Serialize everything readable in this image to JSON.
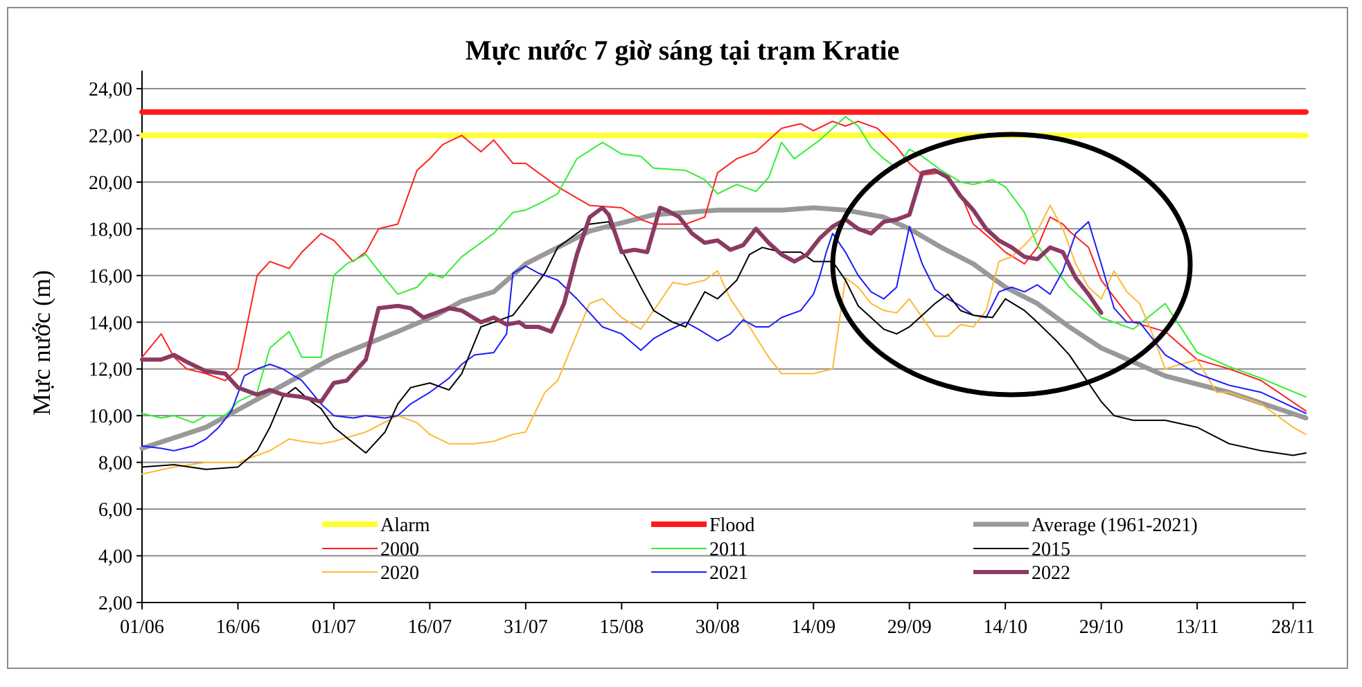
{
  "chart_data": {
    "type": "line",
    "title": "Mực nước 7 giờ sáng tại trạm Kratie",
    "xlabel": "",
    "ylabel": "Mực nước (m)",
    "ylim": [
      2,
      24
    ],
    "xlim": [
      "01/06",
      "30/11"
    ],
    "yticks": [
      "2,00",
      "4,00",
      "6,00",
      "8,00",
      "10,00",
      "12,00",
      "14,00",
      "16,00",
      "18,00",
      "20,00",
      "22,00",
      "24,00"
    ],
    "xticks": [
      "01/06",
      "16/06",
      "01/07",
      "16/07",
      "31/07",
      "15/08",
      "30/08",
      "14/09",
      "29/09",
      "14/10",
      "29/10",
      "13/11",
      "28/11"
    ],
    "grid": true,
    "legend_placement": "bottom",
    "annotation": "black ellipse highlighting late September to late October",
    "colors": {
      "alarm": "#ffff33",
      "flood": "#ff1a1a",
      "average": "#999999",
      "y2000": "#ff2020",
      "y2011": "#33ee33",
      "y2015": "#000000",
      "y2020": "#ffb833",
      "y2021": "#1a1aff",
      "y2022": "#8b3a62",
      "ellipse": "#000000",
      "grid": "#8c8c8c"
    },
    "series": [
      {
        "name": "Alarm",
        "color_key": "alarm",
        "width": 8,
        "x": [
          0,
          182
        ],
        "y": [
          22.0,
          22.0
        ]
      },
      {
        "name": "Flood",
        "color_key": "flood",
        "width": 8,
        "x": [
          0,
          182
        ],
        "y": [
          23.0,
          23.0
        ]
      },
      {
        "name": "Average (1961-2021)",
        "color_key": "average",
        "width": 7,
        "x": [
          0,
          10,
          20,
          30,
          40,
          46,
          50,
          55,
          60,
          70,
          80,
          90,
          100,
          105,
          110,
          116,
          120,
          125,
          130,
          135,
          140,
          145,
          150,
          160,
          170,
          182
        ],
        "y": [
          8.6,
          9.5,
          11.0,
          12.5,
          13.6,
          14.3,
          14.9,
          15.3,
          16.5,
          17.9,
          18.6,
          18.8,
          18.8,
          18.9,
          18.8,
          18.5,
          18.0,
          17.2,
          16.5,
          15.5,
          14.8,
          13.8,
          12.9,
          11.7,
          11.0,
          9.9
        ]
      },
      {
        "name": "2000",
        "color_key": "y2000",
        "width": 2,
        "x": [
          0,
          3,
          5,
          7,
          10,
          13,
          15,
          18,
          20,
          23,
          25,
          28,
          30,
          33,
          35,
          37,
          40,
          43,
          45,
          47,
          50,
          53,
          55,
          58,
          60,
          65,
          70,
          75,
          78,
          80,
          85,
          88,
          90,
          93,
          96,
          100,
          103,
          105,
          108,
          110,
          112,
          115,
          118,
          120,
          122,
          125,
          128,
          130,
          133,
          135,
          138,
          140,
          142,
          144,
          145,
          148,
          150,
          155,
          160,
          165,
          170,
          175,
          182
        ],
        "y": [
          12.5,
          13.5,
          12.5,
          12.0,
          11.8,
          11.5,
          12.0,
          16.0,
          16.6,
          16.3,
          17.0,
          17.8,
          17.5,
          16.6,
          17.0,
          18.0,
          18.2,
          20.5,
          21.0,
          21.6,
          22.0,
          21.3,
          21.8,
          20.8,
          20.8,
          19.8,
          19.0,
          18.9,
          18.4,
          18.2,
          18.2,
          18.5,
          20.4,
          21.0,
          21.3,
          22.3,
          22.5,
          22.2,
          22.6,
          22.4,
          22.6,
          22.3,
          21.5,
          20.8,
          20.3,
          20.4,
          19.5,
          18.2,
          17.5,
          17.0,
          16.5,
          17.2,
          18.5,
          18.2,
          17.9,
          17.2,
          15.8,
          14.0,
          13.6,
          12.4,
          12.0,
          11.5,
          10.2
        ]
      },
      {
        "name": "2011",
        "color_key": "y2011",
        "width": 2,
        "x": [
          0,
          3,
          5,
          8,
          10,
          13,
          15,
          18,
          20,
          23,
          25,
          28,
          30,
          32,
          35,
          37,
          40,
          43,
          45,
          47,
          50,
          55,
          58,
          60,
          63,
          65,
          68,
          72,
          75,
          78,
          80,
          85,
          88,
          90,
          93,
          96,
          98,
          100,
          102,
          104,
          106,
          108,
          110,
          112,
          114,
          116,
          118,
          120,
          122,
          125,
          128,
          130,
          133,
          135,
          138,
          140,
          145,
          147,
          150,
          155,
          160,
          165,
          170,
          175,
          182
        ],
        "y": [
          10.1,
          9.9,
          10.0,
          9.7,
          10.0,
          10.0,
          10.6,
          11.0,
          12.9,
          13.6,
          12.5,
          12.5,
          16.0,
          16.5,
          16.9,
          16.2,
          15.2,
          15.5,
          16.1,
          15.9,
          16.8,
          17.8,
          18.7,
          18.8,
          19.2,
          19.5,
          21.0,
          21.7,
          21.2,
          21.1,
          20.6,
          20.5,
          20.1,
          19.5,
          19.9,
          19.6,
          20.2,
          21.7,
          21.0,
          21.4,
          21.8,
          22.3,
          22.8,
          22.4,
          21.5,
          21.0,
          20.6,
          21.4,
          21.1,
          20.5,
          20.0,
          19.9,
          20.1,
          19.8,
          18.7,
          17.3,
          15.5,
          15.0,
          14.2,
          13.7,
          14.8,
          12.7,
          12.1,
          11.6,
          10.8
        ]
      },
      {
        "name": "2015",
        "color_key": "y2015",
        "width": 2,
        "x": [
          0,
          5,
          10,
          15,
          18,
          20,
          22,
          24,
          26,
          28,
          30,
          35,
          38,
          40,
          42,
          45,
          48,
          50,
          53,
          55,
          58,
          60,
          63,
          65,
          68,
          70,
          73,
          75,
          78,
          80,
          83,
          85,
          88,
          90,
          93,
          95,
          97,
          100,
          103,
          105,
          108,
          110,
          112,
          114,
          116,
          118,
          120,
          122,
          124,
          126,
          128,
          130,
          133,
          135,
          138,
          140,
          143,
          145,
          148,
          150,
          152,
          155,
          160,
          165,
          170,
          175,
          180,
          182
        ],
        "y": [
          7.8,
          7.9,
          7.7,
          7.8,
          8.5,
          9.5,
          10.8,
          11.2,
          10.7,
          10.3,
          9.5,
          8.4,
          9.3,
          10.5,
          11.2,
          11.4,
          11.1,
          11.8,
          13.8,
          14.0,
          14.3,
          15.0,
          16.1,
          17.2,
          17.8,
          18.2,
          18.3,
          17.1,
          15.5,
          14.5,
          14.0,
          13.8,
          15.3,
          15.0,
          15.8,
          16.9,
          17.2,
          17.0,
          17.0,
          16.6,
          16.6,
          15.8,
          14.7,
          14.2,
          13.7,
          13.5,
          13.8,
          14.3,
          14.8,
          15.2,
          14.5,
          14.3,
          14.2,
          15.0,
          14.5,
          14.0,
          13.2,
          12.6,
          11.4,
          10.6,
          10.0,
          9.8,
          9.8,
          9.5,
          8.8,
          8.5,
          8.3,
          8.4
        ]
      },
      {
        "name": "2020",
        "color_key": "y2020",
        "width": 2,
        "x": [
          0,
          5,
          10,
          15,
          20,
          23,
          25,
          28,
          30,
          35,
          40,
          43,
          45,
          48,
          50,
          52,
          55,
          58,
          60,
          63,
          65,
          68,
          70,
          72,
          75,
          78,
          80,
          83,
          85,
          88,
          90,
          92,
          95,
          98,
          100,
          103,
          105,
          108,
          110,
          112,
          114,
          116,
          118,
          120,
          122,
          124,
          126,
          128,
          130,
          132,
          134,
          136,
          138,
          140,
          142,
          144,
          146,
          148,
          150,
          152,
          154,
          156,
          158,
          160,
          165,
          168,
          170,
          175,
          180,
          182
        ],
        "y": [
          7.5,
          7.8,
          8.0,
          8.0,
          8.5,
          9.0,
          8.9,
          8.8,
          8.9,
          9.3,
          10.0,
          9.7,
          9.2,
          8.8,
          8.8,
          8.8,
          8.9,
          9.2,
          9.3,
          11.0,
          11.5,
          13.5,
          14.8,
          15.0,
          14.2,
          13.7,
          14.5,
          15.7,
          15.6,
          15.8,
          16.2,
          15.0,
          13.8,
          12.5,
          11.8,
          11.8,
          11.8,
          12.0,
          15.9,
          15.5,
          14.8,
          14.5,
          14.4,
          15.0,
          14.2,
          13.4,
          13.4,
          13.9,
          13.8,
          14.5,
          16.6,
          16.8,
          17.3,
          17.9,
          19.0,
          18.0,
          16.5,
          15.5,
          15.0,
          16.2,
          15.3,
          14.8,
          13.5,
          12.0,
          12.4,
          11.0,
          11.0,
          10.5,
          9.5,
          9.2
        ]
      },
      {
        "name": "2021",
        "color_key": "y2021",
        "width": 2,
        "x": [
          0,
          3,
          5,
          8,
          10,
          12,
          14,
          16,
          18,
          20,
          22,
          25,
          28,
          30,
          33,
          35,
          38,
          40,
          42,
          45,
          48,
          50,
          52,
          55,
          57,
          58,
          60,
          62,
          65,
          68,
          70,
          72,
          75,
          78,
          80,
          82,
          85,
          87,
          90,
          92,
          94,
          96,
          98,
          100,
          103,
          105,
          106,
          107,
          108,
          110,
          112,
          114,
          116,
          118,
          120,
          122,
          124,
          126,
          128,
          130,
          132,
          134,
          136,
          138,
          140,
          142,
          144,
          146,
          148,
          150,
          152,
          154,
          156,
          158,
          160,
          165,
          170,
          175,
          182
        ],
        "y": [
          8.7,
          8.6,
          8.5,
          8.7,
          9.0,
          9.5,
          10.2,
          11.7,
          12.0,
          12.2,
          12.0,
          11.5,
          10.5,
          10.0,
          9.9,
          10.0,
          9.9,
          10.0,
          10.5,
          11.0,
          11.6,
          12.2,
          12.6,
          12.7,
          13.5,
          16.1,
          16.4,
          16.1,
          15.8,
          15.0,
          14.4,
          13.8,
          13.5,
          12.8,
          13.3,
          13.6,
          14.0,
          13.7,
          13.2,
          13.5,
          14.1,
          13.8,
          13.8,
          14.2,
          14.5,
          15.2,
          16.0,
          17.0,
          17.8,
          17.0,
          16.0,
          15.3,
          15.0,
          15.5,
          18.1,
          16.5,
          15.4,
          15.0,
          14.7,
          14.3,
          14.2,
          15.3,
          15.5,
          15.3,
          15.6,
          15.2,
          16.2,
          17.8,
          18.3,
          16.5,
          14.6,
          14.0,
          14.0,
          13.3,
          12.6,
          11.8,
          11.3,
          11.0,
          10.1
        ]
      },
      {
        "name": "2022",
        "color_key": "y2022",
        "width": 6,
        "x": [
          0,
          3,
          5,
          7,
          10,
          13,
          15,
          18,
          20,
          22,
          25,
          28,
          30,
          32,
          35,
          37,
          40,
          42,
          44,
          46,
          48,
          50,
          53,
          55,
          57,
          59,
          60,
          62,
          64,
          66,
          68,
          70,
          72,
          73,
          75,
          77,
          79,
          81,
          82,
          84,
          86,
          88,
          90,
          92,
          94,
          96,
          98,
          100,
          102,
          104,
          106,
          108,
          110,
          112,
          114,
          116,
          118,
          120,
          122,
          124,
          126,
          128,
          130,
          132,
          134,
          136,
          138,
          140,
          142,
          144,
          146,
          148,
          150
        ],
        "y": [
          12.4,
          12.4,
          12.6,
          12.3,
          11.9,
          11.8,
          11.2,
          10.9,
          11.1,
          10.9,
          10.8,
          10.6,
          11.4,
          11.5,
          12.4,
          14.6,
          14.7,
          14.6,
          14.2,
          14.4,
          14.6,
          14.5,
          14.0,
          14.2,
          13.9,
          14.0,
          13.8,
          13.8,
          13.6,
          14.8,
          16.9,
          18.5,
          18.9,
          18.6,
          17.0,
          17.1,
          17.0,
          18.9,
          18.8,
          18.5,
          17.8,
          17.4,
          17.5,
          17.1,
          17.3,
          18.0,
          17.4,
          16.9,
          16.6,
          16.9,
          17.6,
          18.1,
          18.4,
          18.0,
          17.8,
          18.3,
          18.4,
          18.6,
          20.4,
          20.5,
          20.2,
          19.4,
          18.8,
          18.0,
          17.5,
          17.2,
          16.8,
          16.7,
          17.2,
          17.0,
          15.9,
          15.2,
          14.4
        ]
      }
    ],
    "legend": [
      {
        "label": "Alarm",
        "color_key": "alarm",
        "width": 8
      },
      {
        "label": "Flood",
        "color_key": "flood",
        "width": 8
      },
      {
        "label": "Average (1961-2021)",
        "color_key": "average",
        "width": 7
      },
      {
        "label": "2000",
        "color_key": "y2000",
        "width": 2
      },
      {
        "label": "2011",
        "color_key": "y2011",
        "width": 2
      },
      {
        "label": "2015",
        "color_key": "y2015",
        "width": 2
      },
      {
        "label": "2020",
        "color_key": "y2020",
        "width": 2
      },
      {
        "label": "2021",
        "color_key": "y2021",
        "width": 2
      },
      {
        "label": "2022",
        "color_key": "y2022",
        "width": 6
      }
    ]
  }
}
